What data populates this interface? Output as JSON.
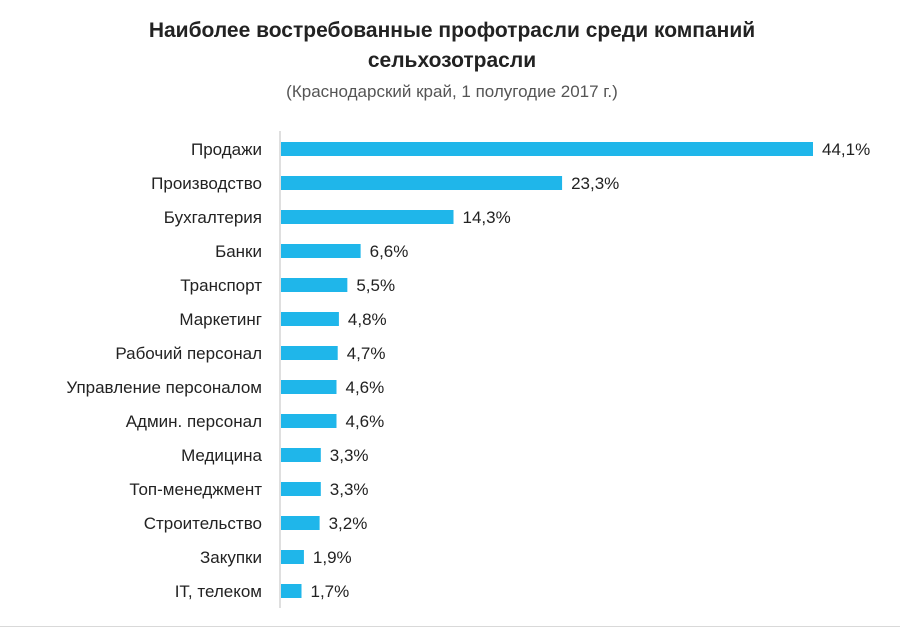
{
  "chart_data": {
    "type": "bar",
    "orientation": "horizontal",
    "title": "Наиболее востребованные профотрасли среди компаний сельхозотрасли",
    "title_lines": [
      "Наиболее востребованные профотрасли среди компаний",
      "сельхозотрасли"
    ],
    "subtitle": "(Краснодарский край, 1 полугодие 2017 г.)",
    "categories": [
      "Продажи",
      "Производство",
      "Бухгалтерия",
      "Банки",
      "Транспорт",
      "Маркетинг",
      "Рабочий персонал",
      "Управление персоналом",
      "Админ. персонал",
      "Медицина",
      "Топ-менеджмент",
      "Строительство",
      "Закупки",
      "IT, телеком"
    ],
    "values": [
      44.1,
      23.3,
      14.3,
      6.6,
      5.5,
      4.8,
      4.7,
      4.6,
      4.6,
      3.3,
      3.3,
      3.2,
      1.9,
      1.7
    ],
    "value_labels": [
      "44,1%",
      "23,3%",
      "14,3%",
      "6,6%",
      "5,5%",
      "4,8%",
      "4,7%",
      "4,6%",
      "4,6%",
      "3,3%",
      "3,3%",
      "3,2%",
      "1,9%",
      "1,7%"
    ],
    "xlim": [
      0,
      44.1
    ],
    "grid": false,
    "legend": "none",
    "bar_color": "#1fb6ea",
    "axis_color": "#bfbfbf"
  }
}
